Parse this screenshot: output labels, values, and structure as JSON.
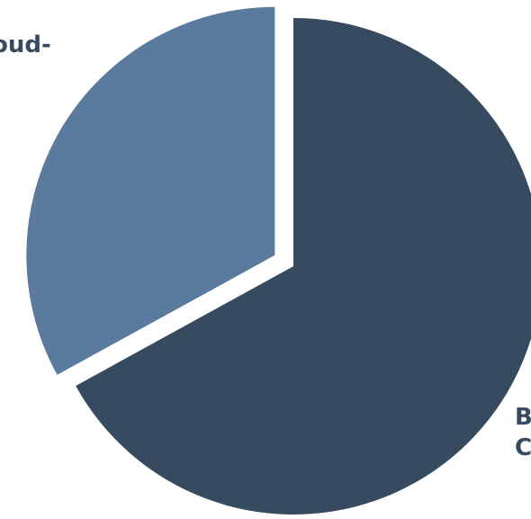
{
  "chart_data": {
    "type": "pie",
    "title": "",
    "slices": [
      {
        "label_lines": [
          "Cloud-"
        ],
        "value": 33,
        "color": "#5a7a9e"
      },
      {
        "label_lines": [
          "B",
          "C"
        ],
        "value": 67,
        "color": "#364b5f"
      }
    ],
    "label_color": "#364b5f"
  }
}
